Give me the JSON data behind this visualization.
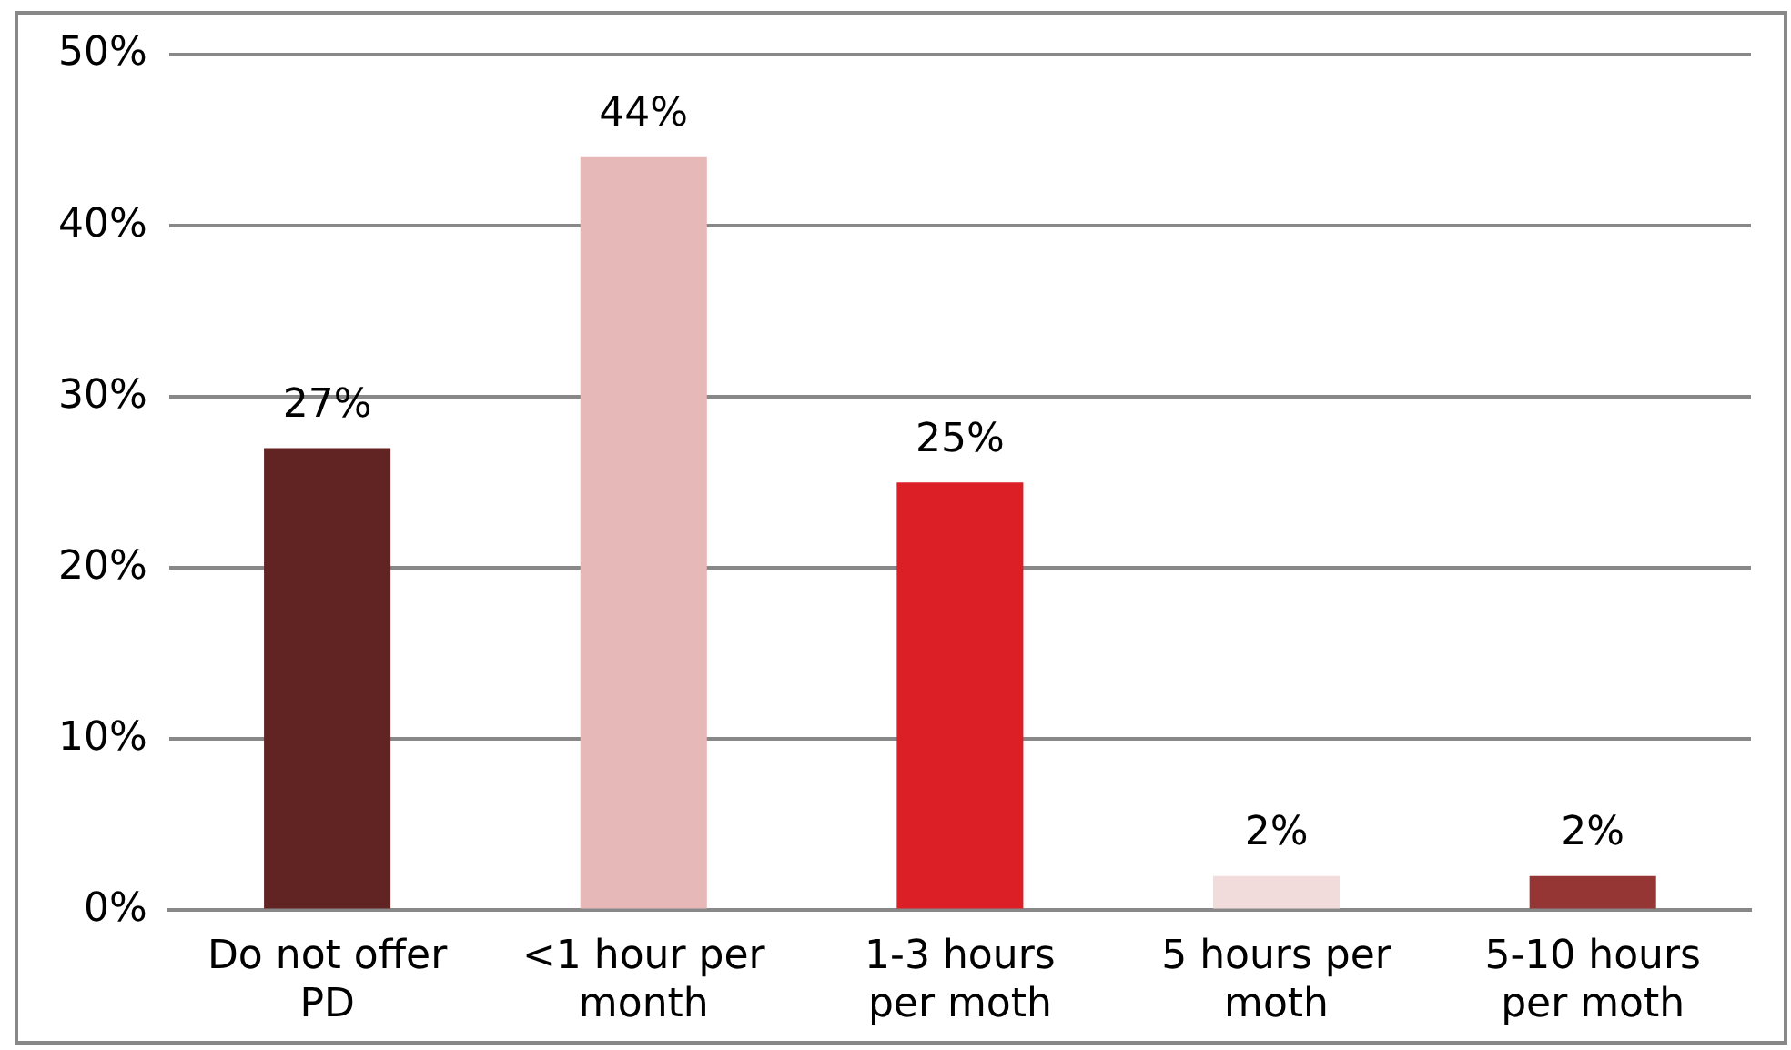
{
  "chart_data": {
    "type": "bar",
    "categories": [
      "Do not offer PD",
      "<1 hour per month",
      "1-3 hours per moth",
      "5 hours per moth",
      "5-10 hours per moth"
    ],
    "values": [
      27,
      44,
      25,
      2,
      2
    ],
    "colors": [
      "#622323",
      "#e6b8b7",
      "#dc1f27",
      "#f2dcdb",
      "#963634"
    ],
    "ylim": [
      0,
      50
    ],
    "yticks": [
      {
        "value": 0,
        "label": "0%"
      },
      {
        "value": 10,
        "label": "10%"
      },
      {
        "value": 20,
        "label": "20%"
      },
      {
        "value": 30,
        "label": "30%"
      },
      {
        "value": 40,
        "label": "40%"
      },
      {
        "value": 50,
        "label": "50%"
      }
    ],
    "value_labels": [
      "27%",
      "44%",
      "25%",
      "2%",
      "2%"
    ],
    "grid": "y",
    "legend": false
  }
}
